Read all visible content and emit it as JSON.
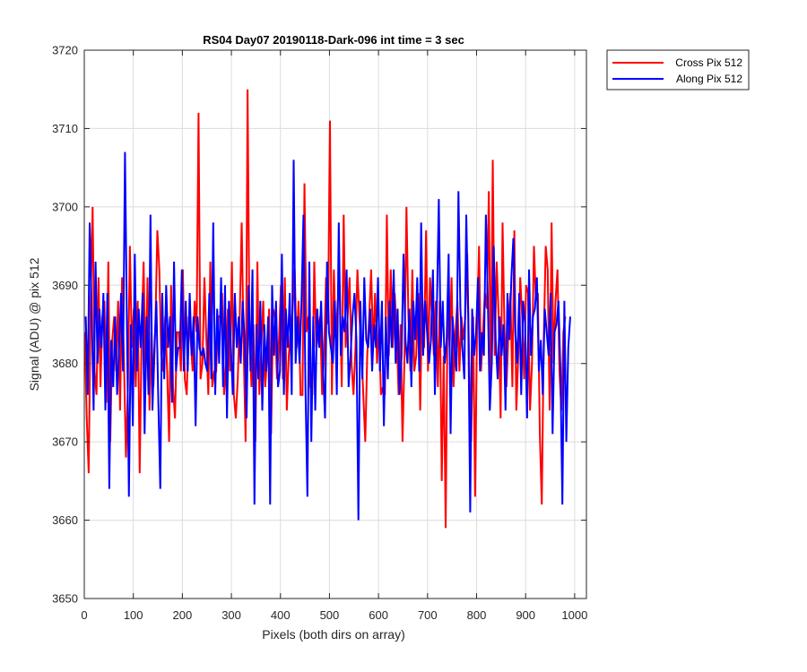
{
  "chart_data": {
    "type": "line",
    "title": "RS04 Day07 20190118-Dark-096 int time = 3 sec",
    "xlabel": "Pixels (both dirs on array)",
    "ylabel": "Signal (ADU) @ pix 512",
    "xlim": [
      0,
      1024
    ],
    "ylim": [
      3650,
      3720
    ],
    "x_ticks": [
      "0",
      "100",
      "200",
      "300",
      "400",
      "500",
      "600",
      "700",
      "800",
      "900",
      "1000"
    ],
    "y_ticks": [
      "3650",
      "3660",
      "3670",
      "3680",
      "3690",
      "3700",
      "3710",
      "3720"
    ],
    "grid": true,
    "legend_position": "outside top-right",
    "series": [
      {
        "name": "Cross Pix 512",
        "color": "#ff0000",
        "x_start": 1,
        "x_step": 4,
        "values": [
          3684,
          3673,
          3666,
          3688,
          3700,
          3679,
          3676,
          3691,
          3677,
          3686,
          3688,
          3675,
          3693,
          3670,
          3683,
          3686,
          3679,
          3688,
          3674,
          3691,
          3680,
          3668,
          3677,
          3695,
          3682,
          3687,
          3677,
          3688,
          3666,
          3684,
          3693,
          3678,
          3691,
          3674,
          3684,
          3677,
          3685,
          3697,
          3692,
          3681,
          3679,
          3686,
          3679,
          3670,
          3690,
          3677,
          3673,
          3684,
          3684,
          3679,
          3692,
          3678,
          3676,
          3686,
          3683,
          3679,
          3688,
          3684,
          3712,
          3678,
          3680,
          3691,
          3683,
          3676,
          3693,
          3677,
          3679,
          3679,
          3686,
          3686,
          3689,
          3676,
          3680,
          3687,
          3679,
          3693,
          3676,
          3673,
          3678,
          3686,
          3698,
          3682,
          3670,
          3715,
          3683,
          3677,
          3685,
          3670,
          3693,
          3676,
          3682,
          3688,
          3677,
          3681,
          3687,
          3671,
          3687,
          3686,
          3678,
          3683,
          3690,
          3678,
          3691,
          3674,
          3681,
          3684,
          3687,
          3692,
          3682,
          3688,
          3676,
          3676,
          3703,
          3684,
          3686,
          3677,
          3676,
          3693,
          3682,
          3684,
          3686,
          3676,
          3681,
          3691,
          3685,
          3711,
          3676,
          3692,
          3683,
          3688,
          3690,
          3677,
          3699,
          3682,
          3686,
          3691,
          3680,
          3676,
          3682,
          3692,
          3686,
          3682,
          3676,
          3670,
          3681,
          3686,
          3692,
          3682,
          3689,
          3680,
          3685,
          3676,
          3677,
          3676,
          3699,
          3681,
          3692,
          3682,
          3689,
          3684,
          3676,
          3685,
          3670,
          3681,
          3700,
          3686,
          3679,
          3692,
          3679,
          3681,
          3689,
          3674,
          3689,
          3682,
          3697,
          3679,
          3691,
          3686,
          3681,
          3688,
          3677,
          3688,
          3665,
          3681,
          3659,
          3688,
          3682,
          3691,
          3677,
          3684,
          3688,
          3679,
          3686,
          3683,
          3686,
          3694,
          3680,
          3670,
          3686,
          3663,
          3685,
          3695,
          3679,
          3684,
          3689,
          3687,
          3702,
          3677,
          3706,
          3681,
          3693,
          3686,
          3673,
          3698,
          3684,
          3677,
          3684,
          3689,
          3677,
          3697,
          3674,
          3681,
          3691,
          3686,
          3678,
          3690,
          3689,
          3674,
          3680,
          3695,
          3688,
          3689,
          3671,
          3662,
          3683,
          3695,
          3692,
          3674,
          3698,
          3680,
          3688,
          3692,
          3679,
          3674,
          3684,
          3686
        ]
      },
      {
        "name": "Along Pix 512",
        "color": "#0000ff",
        "x_start": 3,
        "x_step": 4,
        "values": [
          3686,
          3676,
          3698,
          3687,
          3674,
          3693,
          3680,
          3687,
          3682,
          3689,
          3674,
          3689,
          3664,
          3683,
          3677,
          3686,
          3676,
          3682,
          3689,
          3679,
          3707,
          3685,
          3663,
          3685,
          3672,
          3694,
          3679,
          3687,
          3682,
          3689,
          3671,
          3686,
          3676,
          3699,
          3674,
          3682,
          3688,
          3675,
          3664,
          3689,
          3678,
          3690,
          3682,
          3686,
          3675,
          3693,
          3679,
          3682,
          3682,
          3692,
          3679,
          3688,
          3679,
          3689,
          3681,
          3686,
          3672,
          3686,
          3682,
          3681,
          3682,
          3680,
          3679,
          3689,
          3678,
          3698,
          3676,
          3687,
          3680,
          3691,
          3677,
          3690,
          3673,
          3688,
          3682,
          3676,
          3689,
          3682,
          3686,
          3680,
          3688,
          3683,
          3673,
          3690,
          3679,
          3692,
          3662,
          3685,
          3678,
          3688,
          3674,
          3685,
          3679,
          3686,
          3662,
          3690,
          3681,
          3688,
          3677,
          3679,
          3694,
          3676,
          3687,
          3682,
          3689,
          3676,
          3706,
          3680,
          3686,
          3680,
          3688,
          3699,
          3677,
          3663,
          3693,
          3670,
          3686,
          3674,
          3687,
          3682,
          3688,
          3679,
          3673,
          3693,
          3684,
          3682,
          3680,
          3688,
          3676,
          3698,
          3681,
          3686,
          3684,
          3692,
          3677,
          3681,
          3686,
          3689,
          3683,
          3660,
          3688,
          3678,
          3691,
          3683,
          3682,
          3687,
          3679,
          3685,
          3682,
          3691,
          3679,
          3688,
          3672,
          3686,
          3678,
          3688,
          3682,
          3692,
          3680,
          3687,
          3676,
          3681,
          3694,
          3683,
          3680,
          3687,
          3677,
          3688,
          3683,
          3691,
          3679,
          3698,
          3681,
          3688,
          3684,
          3680,
          3683,
          3692,
          3676,
          3687,
          3701,
          3682,
          3688,
          3680,
          3683,
          3694,
          3671,
          3686,
          3682,
          3679,
          3702,
          3687,
          3682,
          3678,
          3699,
          3686,
          3661,
          3687,
          3681,
          3684,
          3691,
          3679,
          3684,
          3681,
          3699,
          3688,
          3674,
          3680,
          3695,
          3683,
          3678,
          3686,
          3681,
          3685,
          3674,
          3689,
          3683,
          3691,
          3696,
          3684,
          3680,
          3689,
          3676,
          3688,
          3685,
          3673,
          3692,
          3681,
          3686,
          3687,
          3691,
          3679,
          3683,
          3676,
          3687,
          3684,
          3681,
          3689,
          3671,
          3684,
          3685,
          3688,
          3679,
          3662,
          3688,
          3670,
          3682,
          3686
        ]
      }
    ]
  }
}
